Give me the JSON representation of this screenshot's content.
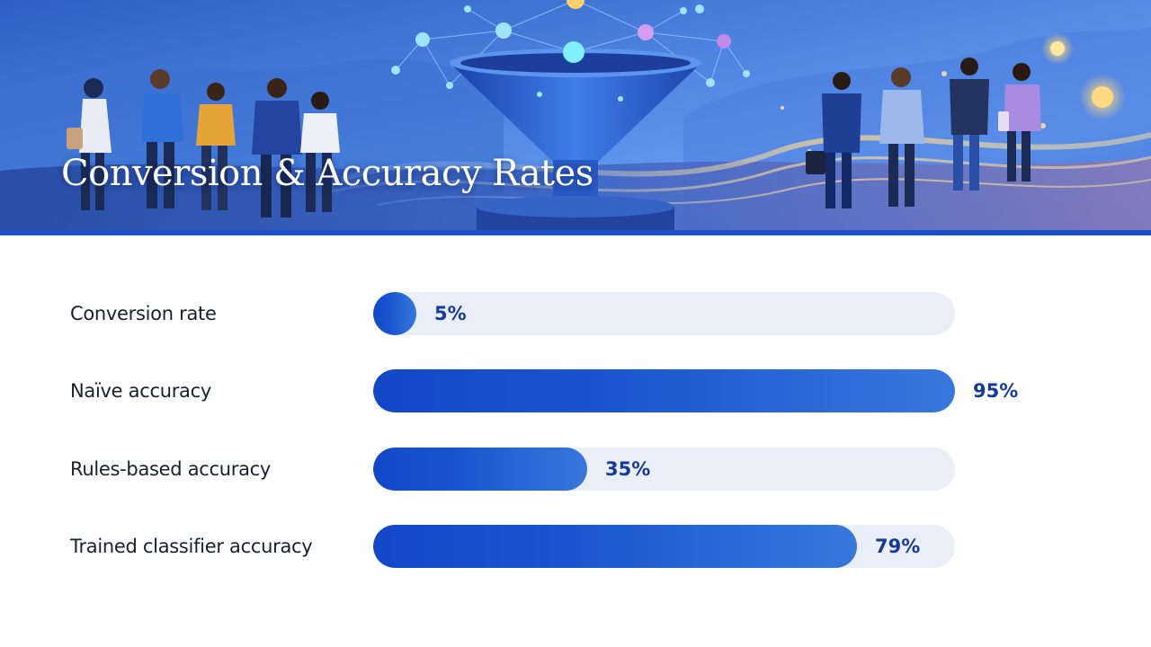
{
  "slide": {
    "title": "Conversion & Accuracy Rates"
  },
  "colors": {
    "bar_fill": "#1a55cf",
    "bar_track": "#e9eef8",
    "value_text": "#153a9a",
    "label_text": "#1b1f2b"
  },
  "chart_data": {
    "type": "bar",
    "orientation": "horizontal",
    "categories": [
      "Conversion rate",
      "Naïve accuracy",
      "Rules-based accuracy",
      "Trained classifier accuracy"
    ],
    "values": [
      5,
      95,
      35,
      79
    ],
    "value_labels": [
      "5%",
      "95%",
      "35%",
      "79%"
    ],
    "unit": "%",
    "xlim": [
      0,
      95
    ],
    "grid": false,
    "legend": "none"
  }
}
